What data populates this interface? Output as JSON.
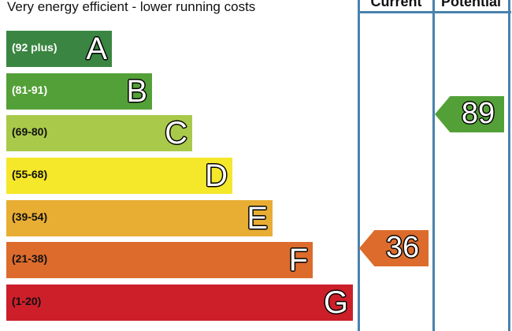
{
  "chart_data": {
    "type": "bar",
    "title": "Very energy efficient - lower running costs",
    "columns": [
      "Current",
      "Potential"
    ],
    "bands": [
      {
        "range": "(92 plus)",
        "letter": "A",
        "color": "#3a8541",
        "text_color": "#ffffff"
      },
      {
        "range": "(81-91)",
        "letter": "B",
        "color": "#54a038",
        "text_color": "#ffffff"
      },
      {
        "range": "(69-80)",
        "letter": "C",
        "color": "#a9c94a",
        "text_color": "#111111"
      },
      {
        "range": "(55-68)",
        "letter": "D",
        "color": "#f5e72a",
        "text_color": "#111111"
      },
      {
        "range": "(39-54)",
        "letter": "E",
        "color": "#e8ad33",
        "text_color": "#111111"
      },
      {
        "range": "(21-38)",
        "letter": "F",
        "color": "#dc6b2c",
        "text_color": "#111111"
      },
      {
        "range": "(1-20)",
        "letter": "G",
        "color": "#cc1f2a",
        "text_color": "#111111"
      }
    ],
    "current": {
      "value": 36,
      "band": "F",
      "color": "#dc6b2c"
    },
    "potential": {
      "value": 89,
      "band": "B",
      "color": "#54a038"
    }
  }
}
